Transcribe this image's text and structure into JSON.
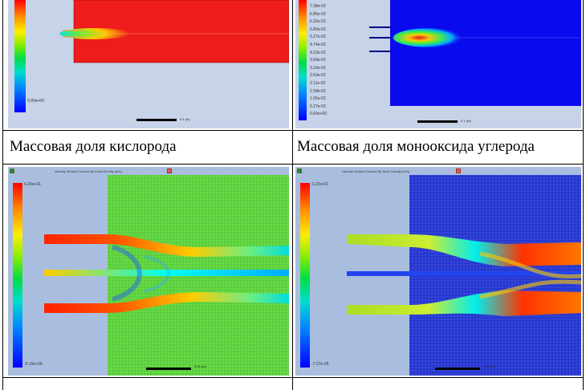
{
  "captions": {
    "top_left": "Массовая доля кислорода",
    "top_right": "Массовая доля монооксида углерода"
  },
  "panels": {
    "oxygen": {
      "scale_label": "0.1 (m)",
      "ticks": [
        "",
        "",
        "",
        "",
        "",
        "",
        "",
        "",
        "",
        "",
        "",
        "",
        "",
        "",
        "",
        "",
        "",
        "",
        "",
        "",
        "",
        "0.00e+00"
      ]
    },
    "co": {
      "scale_label": "0.1 (m)",
      "ticks": [
        "7.38e-02",
        "6.85e-02",
        "6.32e-02",
        "5.80e-02",
        "5.27e-02",
        "4.74e-02",
        "4.22e-02",
        "3.69e-02",
        "3.16e-02",
        "2.63e-02",
        "2.11e-02",
        "1.58e-02",
        "1.05e-02",
        "5.27e-03",
        "0.00e+00"
      ]
    },
    "velocity_left": {
      "window_title": "Velocity Vectors Colored By Axial Velocity (m/s)",
      "scale_label": "0.05 (m)",
      "ticks": [
        "4.20e+01",
        "",
        "",
        "",
        "",
        "",
        "",
        "",
        "",
        "",
        "",
        "",
        "",
        "",
        "",
        "",
        "",
        "",
        "",
        "",
        "",
        "",
        "",
        "",
        "",
        "",
        "",
        "",
        "",
        "",
        "",
        "",
        "",
        "",
        "",
        "",
        "",
        "",
        "-5.10e+00"
      ]
    },
    "velocity_right": {
      "window_title": "Velocity Vectors Colored By Swirl Velocity (m/s)",
      "scale_label": "0.05 (m)",
      "ticks": [
        "2.22e+01",
        "",
        "",
        "",
        "",
        "",
        "",
        "",
        "",
        "",
        "",
        "",
        "",
        "",
        "",
        "",
        "",
        "",
        "",
        "",
        "",
        "",
        "",
        "",
        "",
        "",
        "",
        "",
        "",
        "",
        "",
        "",
        "",
        "",
        "",
        "",
        "",
        "",
        "-7.27e-05"
      ]
    }
  },
  "colors": {
    "oxygen_field": "#ee1c1c",
    "co_field": "#0a0aee",
    "axial_field": "#66dd44",
    "swirl_field": "#2233cc",
    "panel_background": "#a9bede"
  }
}
